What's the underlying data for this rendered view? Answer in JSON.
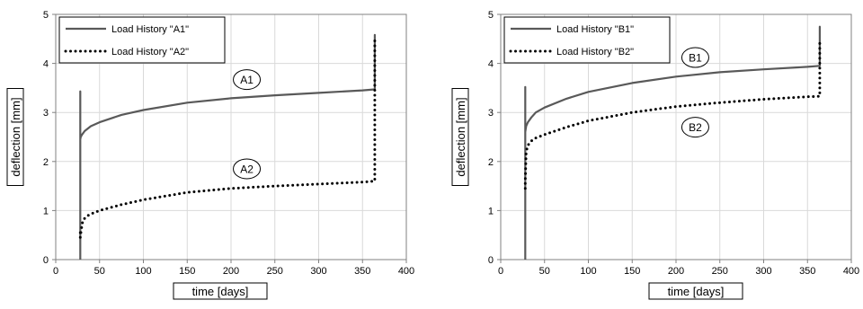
{
  "chart_data": [
    {
      "type": "line",
      "xlabel": "time [days]",
      "ylabel": "deflection [mm]",
      "xlim": [
        0,
        400
      ],
      "ylim": [
        0,
        5
      ],
      "xticks": [
        "0",
        "50",
        "100",
        "150",
        "200",
        "250",
        "300",
        "350",
        "400"
      ],
      "yticks": [
        "0",
        "1",
        "2",
        "3",
        "4",
        "5"
      ],
      "grid": true,
      "legend_position": "top-left",
      "series": [
        {
          "name": "Load History \"A1\"",
          "style": "solid",
          "color": "#595959",
          "x": [
            28,
            28,
            28,
            28,
            28,
            28.5,
            30,
            33,
            40,
            50,
            75,
            100,
            150,
            200,
            250,
            300,
            350,
            364,
            364,
            364
          ],
          "y": [
            0,
            1.0,
            3.43,
            2.3,
            2.45,
            2.5,
            2.55,
            2.62,
            2.72,
            2.8,
            2.95,
            3.05,
            3.2,
            3.29,
            3.35,
            3.4,
            3.45,
            3.47,
            4.58,
            3.6
          ]
        },
        {
          "name": "Load History \"A2\"",
          "style": "dotted",
          "color": "#000000",
          "x": [
            28,
            28,
            29,
            31,
            35,
            40,
            50,
            75,
            100,
            150,
            200,
            250,
            300,
            350,
            364,
            364,
            364
          ],
          "y": [
            0.55,
            0.45,
            0.6,
            0.8,
            0.88,
            0.93,
            1.0,
            1.12,
            1.22,
            1.37,
            1.45,
            1.5,
            1.54,
            1.58,
            1.6,
            4.45,
            4.5
          ]
        }
      ],
      "annotations": [
        {
          "text": "A1",
          "x": 218,
          "y": 3.67
        },
        {
          "text": "A2",
          "x": 218,
          "y": 1.85
        }
      ]
    },
    {
      "type": "line",
      "xlabel": "time [days]",
      "ylabel": "deflection [mm]",
      "xlim": [
        0,
        400
      ],
      "ylim": [
        0,
        5
      ],
      "xticks": [
        "0",
        "50",
        "100",
        "150",
        "200",
        "250",
        "300",
        "350",
        "400"
      ],
      "yticks": [
        "0",
        "1",
        "2",
        "3",
        "4",
        "5"
      ],
      "grid": true,
      "legend_position": "top-left",
      "series": [
        {
          "name": "Load History \"B1\"",
          "style": "solid",
          "color": "#595959",
          "x": [
            28,
            28,
            28,
            28,
            29,
            31,
            35,
            40,
            50,
            75,
            100,
            150,
            200,
            250,
            300,
            350,
            364,
            364,
            364
          ],
          "y": [
            0,
            1.5,
            3.52,
            2.6,
            2.72,
            2.8,
            2.9,
            3.0,
            3.1,
            3.28,
            3.42,
            3.6,
            3.73,
            3.82,
            3.88,
            3.93,
            3.95,
            4.75,
            4.2
          ]
        },
        {
          "name": "Load History \"B2\"",
          "style": "dotted",
          "color": "#000000",
          "x": [
            28,
            28,
            29,
            31,
            35,
            40,
            50,
            75,
            100,
            150,
            200,
            250,
            300,
            350,
            364,
            364,
            364
          ],
          "y": [
            1.45,
            1.6,
            2.2,
            2.33,
            2.42,
            2.48,
            2.55,
            2.7,
            2.83,
            3.0,
            3.12,
            3.2,
            3.27,
            3.32,
            3.33,
            4.42,
            4.38
          ]
        }
      ],
      "annotations": [
        {
          "text": "B1",
          "x": 222,
          "y": 4.12
        },
        {
          "text": "B2",
          "x": 222,
          "y": 2.7
        }
      ]
    }
  ]
}
